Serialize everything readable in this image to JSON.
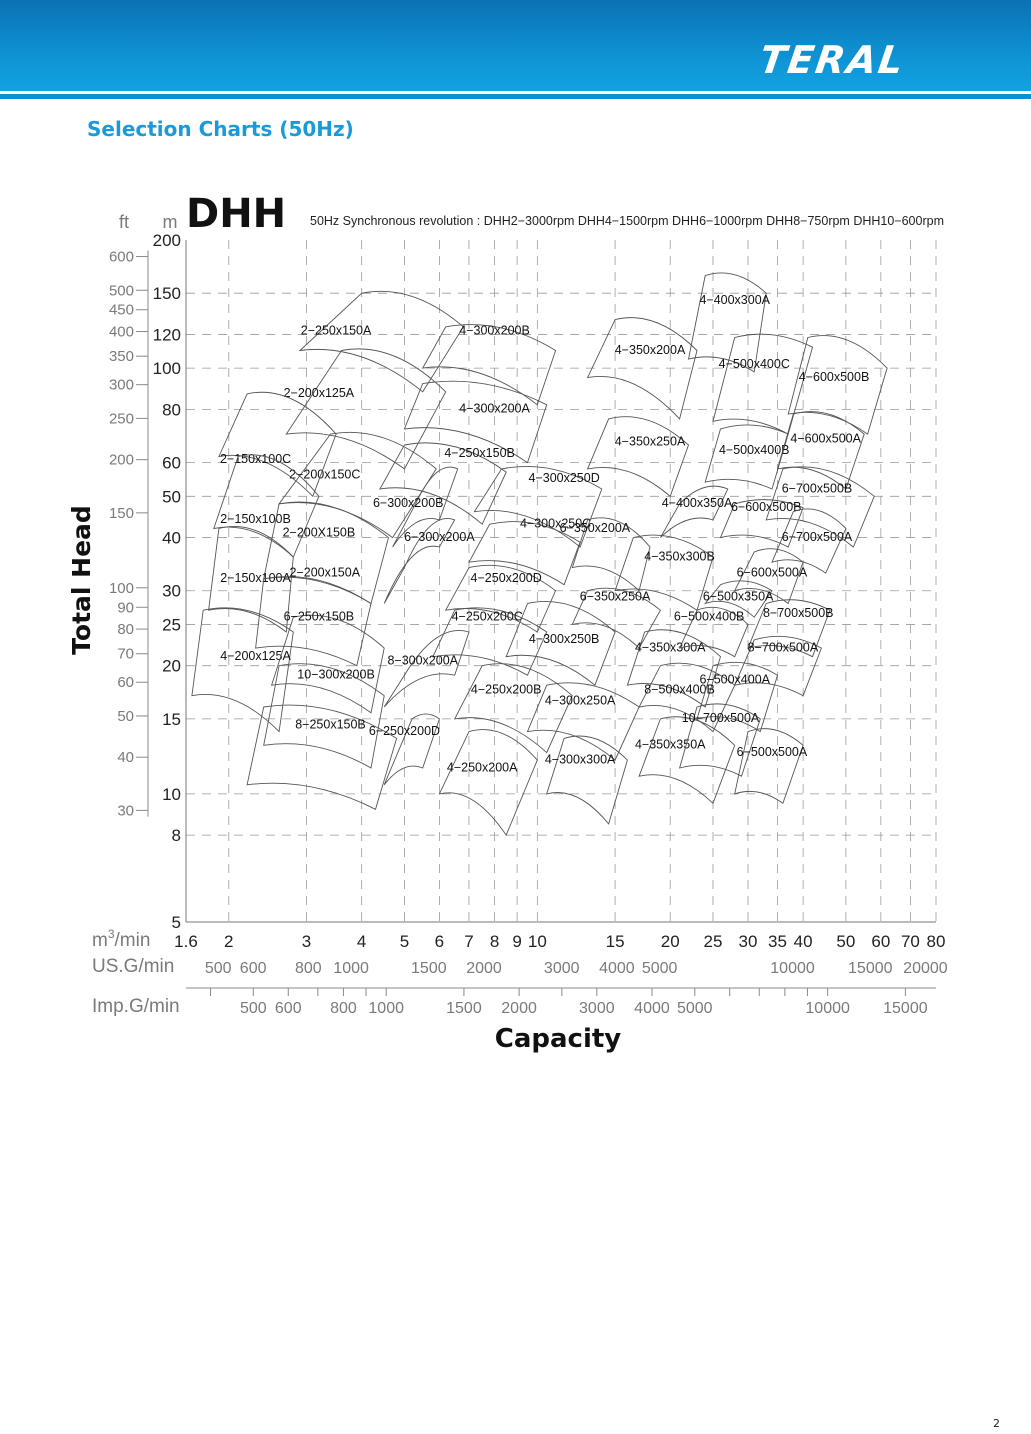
{
  "header": {
    "logo_text": "TERAL",
    "brand_color": "#0e8fd0"
  },
  "section_title": "Selection Charts (50Hz)",
  "page_number": "2",
  "chart_data": {
    "type": "area",
    "title": "DHH",
    "subtitle": "50Hz  Synchronous  revolution : DHH2−3000rpm  DHH4−1500rpm  DHH6−1000rpm  DHH8−750rpm  DHH10−600rpm",
    "xlabel": "Capacity",
    "ylabel": "Total Head",
    "xscale": "log",
    "yscale": "log",
    "xlim": [
      1.6,
      80
    ],
    "ylim": [
      5,
      200
    ],
    "grid": true,
    "y_unit_m": "m",
    "y_unit_ft": "ft",
    "x_unit_m3": "m3/min",
    "x_unit_usg": "US.G/min",
    "x_unit_impg": "Imp.G/min",
    "y_ticks_m": [
      {
        "v": 200,
        "t": "200"
      },
      {
        "v": 150,
        "t": "150"
      },
      {
        "v": 120,
        "t": "120"
      },
      {
        "v": 100,
        "t": "100"
      },
      {
        "v": 80,
        "t": "80"
      },
      {
        "v": 60,
        "t": "60"
      },
      {
        "v": 50,
        "t": "50"
      },
      {
        "v": 40,
        "t": "40"
      },
      {
        "v": 30,
        "t": "30"
      },
      {
        "v": 25,
        "t": "25"
      },
      {
        "v": 20,
        "t": "20"
      },
      {
        "v": 15,
        "t": "15"
      },
      {
        "v": 10,
        "t": "10"
      },
      {
        "v": 8,
        "t": "8"
      },
      {
        "v": 5,
        "t": "5"
      }
    ],
    "y_ticks_ft": [
      {
        "v": 600,
        "t": "600"
      },
      {
        "v": 500,
        "t": "500"
      },
      {
        "v": 450,
        "t": "450"
      },
      {
        "v": 400,
        "t": "400"
      },
      {
        "v": 350,
        "t": "350"
      },
      {
        "v": 300,
        "t": "300"
      },
      {
        "v": 250,
        "t": "250"
      },
      {
        "v": 200,
        "t": "200"
      },
      {
        "v": 150,
        "t": "150"
      },
      {
        "v": 100,
        "t": "100"
      },
      {
        "v": 90,
        "t": "90"
      },
      {
        "v": 80,
        "t": "80"
      },
      {
        "v": 70,
        "t": "70"
      },
      {
        "v": 60,
        "t": "60"
      },
      {
        "v": 50,
        "t": "50"
      },
      {
        "v": 40,
        "t": "40"
      },
      {
        "v": 30,
        "t": "30"
      }
    ],
    "x_ticks_m3": [
      {
        "v": 1.6,
        "t": "1.6"
      },
      {
        "v": 2,
        "t": "2"
      },
      {
        "v": 3,
        "t": "3"
      },
      {
        "v": 4,
        "t": "4"
      },
      {
        "v": 5,
        "t": "5"
      },
      {
        "v": 6,
        "t": "6"
      },
      {
        "v": 7,
        "t": "7"
      },
      {
        "v": 8,
        "t": "8"
      },
      {
        "v": 9,
        "t": "9"
      },
      {
        "v": 10,
        "t": "10"
      },
      {
        "v": 15,
        "t": "15"
      },
      {
        "v": 20,
        "t": "20"
      },
      {
        "v": 25,
        "t": "25"
      },
      {
        "v": 30,
        "t": "30"
      },
      {
        "v": 35,
        "t": "35"
      },
      {
        "v": 40,
        "t": "40"
      },
      {
        "v": 50,
        "t": "50"
      },
      {
        "v": 60,
        "t": "60"
      },
      {
        "v": 70,
        "t": "70"
      },
      {
        "v": 80,
        "t": "80"
      }
    ],
    "x_ticks_usg": [
      {
        "v": 500,
        "t": "500"
      },
      {
        "v": 600,
        "t": "600"
      },
      {
        "v": 800,
        "t": "800"
      },
      {
        "v": 1000,
        "t": "1000"
      },
      {
        "v": 1500,
        "t": "1500"
      },
      {
        "v": 2000,
        "t": "2000"
      },
      {
        "v": 3000,
        "t": "3000"
      },
      {
        "v": 4000,
        "t": "4000"
      },
      {
        "v": 5000,
        "t": "5000"
      },
      {
        "v": 10000,
        "t": "10000"
      },
      {
        "v": 15000,
        "t": "15000"
      },
      {
        "v": 20000,
        "t": "20000"
      }
    ],
    "x_ticks_impg": [
      {
        "v": 500,
        "t": "500"
      },
      {
        "v": 600,
        "t": "600"
      },
      {
        "v": 800,
        "t": "800"
      },
      {
        "v": 1000,
        "t": "1000"
      },
      {
        "v": 1500,
        "t": "1500"
      },
      {
        "v": 2000,
        "t": "2000"
      },
      {
        "v": 3000,
        "t": "3000"
      },
      {
        "v": 4000,
        "t": "4000"
      },
      {
        "v": 5000,
        "t": "5000"
      },
      {
        "v": 10000,
        "t": "10000"
      },
      {
        "v": 15000,
        "t": "15000"
      }
    ],
    "regions": [
      {
        "name": "2−250x150A",
        "x": [
          2.9,
          4.0,
          6.8,
          5.5
        ],
        "y": [
          110,
          150,
          125,
          88
        ],
        "lx": 3.5,
        "ly": 122
      },
      {
        "name": "2−200x125A",
        "x": [
          2.7,
          3.6,
          6.2,
          5.0
        ],
        "y": [
          70,
          110,
          88,
          58
        ],
        "lx": 3.2,
        "ly": 87
      },
      {
        "name": "2−200x150C",
        "x": [
          2.6,
          3.4,
          5.9,
          4.7
        ],
        "y": [
          48,
          70,
          58,
          40
        ],
        "lx": 3.3,
        "ly": 56
      },
      {
        "name": "2−150x100C",
        "x": [
          1.9,
          2.2,
          3.5,
          3.1
        ],
        "y": [
          62,
          87,
          70,
          50
        ],
        "lx": 2.3,
        "ly": 61
      },
      {
        "name": "2−150x100B",
        "x": [
          1.85,
          2.1,
          3.2,
          2.8
        ],
        "y": [
          42,
          62,
          50,
          36
        ],
        "lx": 2.3,
        "ly": 44
      },
      {
        "name": "2−200X150B",
        "x": [
          2.4,
          2.6,
          4.6,
          4.2
        ],
        "y": [
          32,
          48,
          40,
          28
        ],
        "lx": 3.2,
        "ly": 41
      },
      {
        "name": "2−150x100A",
        "x": [
          1.8,
          1.9,
          2.8,
          2.7
        ],
        "y": [
          27,
          42,
          36,
          24
        ],
        "lx": 2.3,
        "ly": 32
      },
      {
        "name": "2−200x150A",
        "x": [
          2.3,
          2.4,
          4.2,
          3.9
        ],
        "y": [
          22,
          32,
          28,
          20
        ],
        "lx": 3.3,
        "ly": 33
      },
      {
        "name": "4−200x125A",
        "x": [
          1.65,
          1.75,
          2.8,
          2.6
        ],
        "y": [
          17,
          27,
          24,
          14
        ],
        "lx": 2.3,
        "ly": 21
      },
      {
        "name": "6−250x150B",
        "x": [
          2.5,
          2.8,
          4.5,
          4.2
        ],
        "y": [
          18,
          26,
          22,
          15.5
        ],
        "lx": 3.2,
        "ly": 26
      },
      {
        "name": "10−300x200B",
        "x": [
          2.4,
          2.6,
          4.5,
          4.2
        ],
        "y": [
          13,
          20,
          17,
          11.5
        ],
        "lx": 3.5,
        "ly": 19
      },
      {
        "name": "8−250x150B",
        "x": [
          2.2,
          2.4,
          4.8,
          4.3
        ],
        "y": [
          10.5,
          16,
          13.5,
          9.2
        ],
        "lx": 3.4,
        "ly": 14.5
      },
      {
        "name": "4−300x200B",
        "x": [
          5.5,
          6.2,
          11,
          10
        ],
        "y": [
          100,
          125,
          110,
          82
        ],
        "lx": 8,
        "ly": 122
      },
      {
        "name": "4−300x200A",
        "x": [
          5.0,
          5.5,
          10.5,
          9.5
        ],
        "y": [
          72,
          92,
          82,
          60
        ],
        "lx": 8,
        "ly": 80
      },
      {
        "name": "4−250x150B",
        "x": [
          4.4,
          5.0,
          8.5,
          7.5
        ],
        "y": [
          52,
          66,
          57,
          43
        ],
        "lx": 7.4,
        "ly": 63
      },
      {
        "name": "6−300x200B",
        "x": [
          4.7,
          5.3,
          6.6,
          6.0
        ],
        "y": [
          38,
          48,
          58,
          44
        ],
        "lx": 5.1,
        "ly": 48
      },
      {
        "name": "6−300x200A",
        "x": [
          4.5,
          5.0,
          6.5,
          6.0
        ],
        "y": [
          28,
          34,
          44,
          38
        ],
        "lx": 6.0,
        "ly": 40
      },
      {
        "name": "4−300x250D",
        "x": [
          7.2,
          8.3,
          14,
          12.5
        ],
        "y": [
          46,
          58,
          52,
          38
        ],
        "lx": 11.5,
        "ly": 55
      },
      {
        "name": "4−300x250C",
        "x": [
          7.0,
          7.8,
          12.5,
          11.5
        ],
        "y": [
          35,
          43,
          39,
          31
        ],
        "lx": 11,
        "ly": 43
      },
      {
        "name": "4−250x200D",
        "x": [
          6.2,
          7.0,
          11,
          10
        ],
        "y": [
          27,
          34,
          30,
          24
        ],
        "lx": 8.5,
        "ly": 32
      },
      {
        "name": "4−250x200C",
        "x": [
          5.8,
          6.5,
          10.5,
          9.5
        ],
        "y": [
          21,
          27,
          24,
          19
        ],
        "lx": 7.7,
        "ly": 26
      },
      {
        "name": "4−300x250B",
        "x": [
          8.5,
          9.5,
          15,
          13.5
        ],
        "y": [
          21,
          28,
          24,
          18
        ],
        "lx": 11.5,
        "ly": 23
      },
      {
        "name": "8−300x200A",
        "x": [
          4.5,
          5.0,
          7.0,
          6.5
        ],
        "y": [
          16,
          19,
          24,
          19
        ],
        "lx": 5.5,
        "ly": 20.5
      },
      {
        "name": "4−250x200B",
        "x": [
          6.5,
          7.5,
          12,
          10.5
        ],
        "y": [
          15,
          20,
          17,
          12.5
        ],
        "lx": 8.5,
        "ly": 17.5
      },
      {
        "name": "6−250x200D",
        "x": [
          4.5,
          5.2,
          6.0,
          5.5
        ],
        "y": [
          10.5,
          15,
          15,
          11.5
        ],
        "lx": 5.0,
        "ly": 14
      },
      {
        "name": "4−250x200A",
        "x": [
          6.0,
          7.0,
          10,
          8.5
        ],
        "y": [
          10,
          14,
          12,
          8
        ],
        "lx": 7.5,
        "ly": 11.5
      },
      {
        "name": "4−300x250A",
        "x": [
          9.5,
          10.5,
          17,
          15
        ],
        "y": [
          14,
          18,
          16,
          12
        ],
        "lx": 12.5,
        "ly": 16.5
      },
      {
        "name": "4−300x300A",
        "x": [
          10.5,
          11.5,
          16,
          14.5
        ],
        "y": [
          10,
          13.5,
          12,
          8.5
        ],
        "lx": 12.5,
        "ly": 12
      },
      {
        "name": "4−350x200A",
        "x": [
          13,
          15,
          23,
          21
        ],
        "y": [
          95,
          130,
          110,
          76
        ],
        "lx": 18,
        "ly": 110
      },
      {
        "name": "4−350x250A",
        "x": [
          13,
          14.5,
          22,
          20
        ],
        "y": [
          58,
          76,
          66,
          50
        ],
        "lx": 18,
        "ly": 67
      },
      {
        "name": "6−350x200A",
        "x": [
          12,
          13,
          18,
          17
        ],
        "y": [
          34,
          44,
          38,
          30
        ],
        "lx": 13.5,
        "ly": 42
      },
      {
        "name": "4−350x300B",
        "x": [
          15,
          16.5,
          25,
          23
        ],
        "y": [
          30,
          40,
          36,
          27
        ],
        "lx": 21,
        "ly": 36
      },
      {
        "name": "6−350x250A",
        "x": [
          12,
          13,
          19,
          17
        ],
        "y": [
          25,
          30,
          27,
          22
        ],
        "lx": 15,
        "ly": 29
      },
      {
        "name": "4−350x300A",
        "x": [
          16,
          17.5,
          26,
          24
        ],
        "y": [
          18,
          24,
          21,
          16
        ],
        "lx": 20,
        "ly": 22
      },
      {
        "name": "8−500x400B",
        "x": [
          17,
          19,
          28,
          25
        ],
        "y": [
          16,
          20,
          18,
          14
        ],
        "lx": 21,
        "ly": 17.5
      },
      {
        "name": "4−350x350A",
        "x": [
          17,
          19,
          28,
          25
        ],
        "y": [
          11,
          15,
          13,
          9.5
        ],
        "lx": 20,
        "ly": 13
      },
      {
        "name": "4−400x300A",
        "x": [
          22,
          24,
          33,
          31
        ],
        "y": [
          105,
          165,
          150,
          98
        ],
        "lx": 28,
        "ly": 144
      },
      {
        "name": "4−500x400C",
        "x": [
          25,
          28,
          42,
          37
        ],
        "y": [
          75,
          118,
          112,
          70
        ],
        "lx": 31,
        "ly": 102
      },
      {
        "name": "4−500x400B",
        "x": [
          24,
          26,
          37,
          34
        ],
        "y": [
          54,
          72,
          70,
          52
        ],
        "lx": 31,
        "ly": 64
      },
      {
        "name": "4−400x350A",
        "x": [
          19,
          21,
          27,
          25
        ],
        "y": [
          40,
          48,
          52,
          44
        ],
        "lx": 23,
        "ly": 48
      },
      {
        "name": "6−600x500B",
        "x": [
          26,
          28,
          40,
          37
        ],
        "y": [
          40,
          48,
          47,
          38
        ],
        "lx": 33,
        "ly": 47
      },
      {
        "name": "6−700x500A",
        "x": [
          34,
          38,
          50,
          45
        ],
        "y": [
          35,
          46,
          42,
          33
        ],
        "lx": 43,
        "ly": 40
      },
      {
        "name": "6−600x500A",
        "x": [
          28,
          31,
          40,
          37
        ],
        "y": [
          30,
          37,
          35,
          28
        ],
        "lx": 34,
        "ly": 33
      },
      {
        "name": "6−500x350A",
        "x": [
          24,
          26,
          34,
          31
        ],
        "y": [
          28,
          31,
          30,
          26
        ],
        "lx": 28.5,
        "ly": 29
      },
      {
        "name": "6−500x400B",
        "x": [
          21,
          23,
          30,
          28
        ],
        "y": [
          22,
          27,
          25,
          21
        ],
        "lx": 24.5,
        "ly": 26
      },
      {
        "name": "8−700x500B",
        "x": [
          30,
          33,
          46,
          42
        ],
        "y": [
          22,
          28,
          27,
          21
        ],
        "lx": 39,
        "ly": 26.5
      },
      {
        "name": "8−700x500A",
        "x": [
          28,
          31,
          44,
          40
        ],
        "y": [
          18,
          23,
          22,
          17
        ],
        "lx": 36,
        "ly": 22
      },
      {
        "name": "6−500x400A",
        "x": [
          23,
          25,
          35,
          32
        ],
        "y": [
          15,
          20,
          19,
          14
        ],
        "lx": 28,
        "ly": 18.5
      },
      {
        "name": "10−700x500A",
        "x": [
          21,
          23,
          32,
          29
        ],
        "y": [
          11.5,
          16,
          15,
          11
        ],
        "lx": 26,
        "ly": 15
      },
      {
        "name": "6−500x500A",
        "x": [
          28,
          30,
          40,
          36
        ],
        "y": [
          10,
          14,
          13,
          9.5
        ],
        "lx": 34,
        "ly": 12.5
      },
      {
        "name": "4−600x500B",
        "x": [
          37,
          41,
          62,
          56
        ],
        "y": [
          78,
          118,
          100,
          70
        ],
        "lx": 47,
        "ly": 95
      },
      {
        "name": "4−600x500A",
        "x": [
          35,
          38,
          55,
          50
        ],
        "y": [
          58,
          78,
          70,
          52
        ],
        "lx": 45,
        "ly": 68
      },
      {
        "name": "6−700x500B",
        "x": [
          33,
          36,
          58,
          52
        ],
        "y": [
          44,
          58,
          50,
          38
        ],
        "lx": 43,
        "ly": 52
      }
    ]
  }
}
